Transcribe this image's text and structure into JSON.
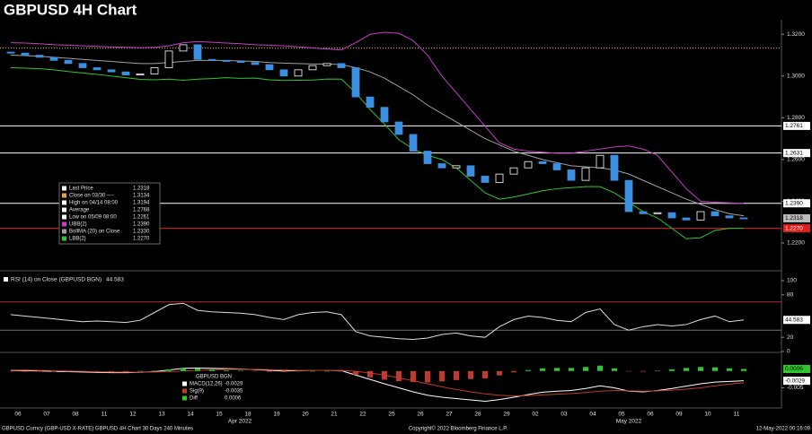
{
  "title": "GBPUSD 4H Chart",
  "x_axis": {
    "categories": [
      "06",
      "07",
      "08",
      "11",
      "12",
      "13",
      "14",
      "15",
      "18",
      "19",
      "20",
      "21",
      "22",
      "25",
      "26",
      "27",
      "28",
      "29",
      "02",
      "03",
      "04",
      "05",
      "06",
      "09",
      "10",
      "11"
    ],
    "months": [
      "Apr 2022",
      "May 2022"
    ]
  },
  "footer": {
    "left": "GBPUSD Curncy (GBP-USD X-RATE) GBPUSD 4H Chart 30 Days 240 Minutes",
    "center": "Copyright© 2022 Bloomberg Finance L.P.",
    "right": "12-May-2022 00:16:09"
  },
  "chart_data": [
    {
      "type": "candlestick",
      "ylim": [
        1.2075,
        1.327
      ],
      "yticks": [
        {
          "value": 1.32,
          "label": "1.3200"
        },
        {
          "value": 1.3,
          "label": "1.3000"
        },
        {
          "value": 1.28,
          "label": "1.2800"
        },
        {
          "value": 1.26,
          "label": "1.2600"
        },
        {
          "value": 1.24,
          "label": "1.2400"
        },
        {
          "value": 1.22,
          "label": "1.2200"
        }
      ],
      "up_color": "#ffffff",
      "down_color": "#3d8fe0",
      "open": [
        1.3115,
        1.311,
        1.31,
        1.309,
        1.3075,
        1.306,
        1.304,
        1.303,
        1.302,
        1.3005,
        1.301,
        1.304,
        1.312,
        1.315,
        1.308,
        1.3075,
        1.307,
        1.3065,
        1.3055,
        1.303,
        1.3,
        1.303,
        1.305,
        1.306,
        1.304,
        1.29,
        1.285,
        1.278,
        1.272,
        1.264,
        1.258,
        1.256,
        1.257,
        1.252,
        1.249,
        1.253,
        1.256,
        1.259,
        1.258,
        1.255,
        1.25,
        1.256,
        1.262,
        1.25,
        1.235,
        1.234,
        1.2345,
        1.232,
        1.231,
        1.235,
        1.233,
        1.232
      ],
      "close": [
        1.311,
        1.31,
        1.309,
        1.3075,
        1.306,
        1.304,
        1.303,
        1.302,
        1.3005,
        1.301,
        1.304,
        1.312,
        1.315,
        1.308,
        1.3075,
        1.307,
        1.3065,
        1.3055,
        1.303,
        1.3,
        1.303,
        1.305,
        1.306,
        1.304,
        1.29,
        1.285,
        1.278,
        1.272,
        1.264,
        1.258,
        1.256,
        1.257,
        1.252,
        1.249,
        1.253,
        1.256,
        1.259,
        1.258,
        1.255,
        1.25,
        1.256,
        1.262,
        1.25,
        1.235,
        1.234,
        1.2345,
        1.232,
        1.231,
        1.235,
        1.233,
        1.232,
        1.2318
      ],
      "series": [
        {
          "color": "#c83cc8",
          "values": [
            1.316,
            1.3158,
            1.3155,
            1.315,
            1.3148,
            1.3145,
            1.3142,
            1.314,
            1.3138,
            1.3136,
            1.3138,
            1.3145,
            1.316,
            1.3165,
            1.3162,
            1.3158,
            1.3155,
            1.315,
            1.3148,
            1.3145,
            1.314,
            1.3135,
            1.313,
            1.3125,
            1.316,
            1.32,
            1.321,
            1.3205,
            1.317,
            1.31,
            1.3,
            1.292,
            1.284,
            1.276,
            1.268,
            1.265,
            1.264,
            1.2635,
            1.263,
            1.263,
            1.264,
            1.265,
            1.266,
            1.2665,
            1.265,
            1.262,
            1.254,
            1.246,
            1.24,
            1.2395,
            1.2392,
            1.239
          ]
        },
        {
          "color": "#a0a0a0",
          "values": [
            1.31,
            1.3098,
            1.3095,
            1.309,
            1.3085,
            1.308,
            1.3075,
            1.307,
            1.3065,
            1.306,
            1.306,
            1.3065,
            1.307,
            1.3075,
            1.3075,
            1.3075,
            1.3072,
            1.307,
            1.3065,
            1.3062,
            1.306,
            1.3058,
            1.3058,
            1.3055,
            1.304,
            1.302,
            1.299,
            1.295,
            1.291,
            1.286,
            1.282,
            1.278,
            1.274,
            1.27,
            1.267,
            1.264,
            1.262,
            1.26,
            1.2585,
            1.257,
            1.2565,
            1.256,
            1.255,
            1.253,
            1.25,
            1.247,
            1.244,
            1.241,
            1.2385,
            1.236,
            1.234,
            1.233
          ]
        },
        {
          "color": "#2ec82e",
          "values": [
            1.304,
            1.3038,
            1.3035,
            1.303,
            1.3022,
            1.3015,
            1.3008,
            1.3,
            1.2992,
            1.2984,
            1.2982,
            1.2985,
            1.298,
            1.2985,
            1.2988,
            1.2992,
            1.2989,
            1.299,
            1.2982,
            1.2979,
            1.298,
            1.2981,
            1.2986,
            1.2985,
            1.292,
            1.284,
            1.277,
            1.2695,
            1.265,
            1.262,
            1.26,
            1.256,
            1.25,
            1.244,
            1.241,
            1.242,
            1.2435,
            1.245,
            1.246,
            1.2465,
            1.247,
            1.247,
            1.244,
            1.2395,
            1.235,
            1.232,
            1.227,
            1.222,
            1.2225,
            1.226,
            1.227,
            1.227
          ]
        }
      ],
      "levels": [
        {
          "level": 1.3134,
          "color": "#e8a040",
          "dashed": true
        },
        {
          "level": 1.2761,
          "color": "#ffffff"
        },
        {
          "level": 1.2631,
          "color": "#ffffff"
        },
        {
          "level": {
            "value": 1.239,
            "label": "1.2390"
          },
          "color": "#ffffff"
        },
        {
          "level": {
            "value": 1.227,
            "label": "1.2270"
          },
          "color": "#e02020"
        }
      ],
      "last_price": 1.2318,
      "legend": [
        {
          "name": "Last Price",
          "color": "#ffffff",
          "value": 1.2318
        },
        {
          "name": "Close on 03/30 ----",
          "color": "#e8a040",
          "value": 1.3134
        },
        {
          "name": "High on 04/14 08:00",
          "color": "#ffffff",
          "value": 1.3194
        },
        {
          "name": "Average",
          "color": "#ffffff",
          "value": 1.2768
        },
        {
          "name": "Low on 05/09 08:00",
          "color": "#ffffff",
          "value": 1.2261
        },
        {
          "name": "UBB(2)",
          "color": "#c83cc8",
          "value": {
            "value": 1.239,
            "label": "1.2390"
          }
        },
        {
          "name": "BollMA (20)  on Close",
          "color": "#a0a0a0",
          "value": {
            "value": 1.233,
            "label": "1.2330"
          }
        },
        {
          "name": "LBB(2)",
          "color": "#2ec82e",
          "value": {
            "value": 1.227,
            "label": "1.2270"
          }
        }
      ]
    },
    {
      "type": "line",
      "title": "RSI (14)  on Close (GBPUSD BGN)",
      "ylim": [
        0,
        110
      ],
      "yticks": [
        100,
        80,
        20,
        0
      ],
      "levels": [
        {
          "level": 70,
          "color": "#c02020"
        },
        {
          "level": 30,
          "color": "#707070"
        }
      ],
      "series": [
        {
          "color": "#dddddd",
          "values": [
            52,
            50,
            48,
            46,
            44,
            42,
            43,
            42,
            41,
            44,
            55,
            66,
            68,
            58,
            56,
            55,
            54,
            52,
            48,
            45,
            52,
            55,
            56,
            52,
            28,
            22,
            20,
            18,
            17,
            19,
            24,
            26,
            22,
            20,
            35,
            45,
            50,
            48,
            44,
            42,
            55,
            60,
            38,
            30,
            35,
            38,
            36,
            38,
            45,
            50,
            42,
            44.583
          ]
        }
      ]
    },
    {
      "type": "line",
      "title": "GBPUSD BGN",
      "ylim": [
        -0.015,
        0.005
      ],
      "yticks": [
        -0.005
      ],
      "series": [
        {
          "name": "MACD(12,26)",
          "color": "#ffffff",
          "values": [
            0.0002,
            0.0001,
            0,
            -0.0001,
            -0.0002,
            -0.0003,
            -0.0004,
            -0.0005,
            -0.0005,
            -0.0004,
            -0.0002,
            0.0003,
            0.0008,
            0.0009,
            0.0008,
            0.0007,
            0.0006,
            0.0004,
            0.0002,
            0,
            0.0001,
            0.0002,
            0.0002,
            0.0001,
            -0.0012,
            -0.0025,
            -0.0038,
            -0.005,
            -0.0062,
            -0.0072,
            -0.0078,
            -0.0082,
            -0.0086,
            -0.009,
            -0.0085,
            -0.0078,
            -0.007,
            -0.0063,
            -0.006,
            -0.0058,
            -0.0052,
            -0.0044,
            -0.005,
            -0.006,
            -0.0062,
            -0.0058,
            -0.0052,
            -0.0045,
            -0.0038,
            -0.0033,
            -0.0031,
            -0.0029
          ]
        },
        {
          "name": "Sig(9)",
          "color": "#c0392b",
          "values": [
            0.0003,
            0.0003,
            0.0002,
            0.0001,
            0,
            -0.0001,
            -0.0002,
            -0.0003,
            -0.0003,
            -0.0004,
            -0.0003,
            -0.0002,
            0,
            0.0002,
            0.0004,
            0.0005,
            0.0005,
            0.0005,
            0.0004,
            0.0003,
            0.0002,
            0.0002,
            0.0002,
            0.0002,
            -0.0001,
            -0.0006,
            -0.0012,
            -0.002,
            -0.0029,
            -0.0038,
            -0.0047,
            -0.0055,
            -0.0062,
            -0.0068,
            -0.0072,
            -0.0074,
            -0.0073,
            -0.0071,
            -0.0069,
            -0.0067,
            -0.0064,
            -0.006,
            -0.0058,
            -0.0059,
            -0.006,
            -0.0059,
            -0.0057,
            -0.0054,
            -0.005,
            -0.0044,
            -0.0039,
            -0.0035
          ]
        },
        {
          "name": "Diff",
          "type": "bar",
          "color": "#2ec82e",
          "values": [
            -0.0001,
            -0.0002,
            -0.0002,
            -0.0002,
            -0.0002,
            -0.0002,
            -0.0002,
            -0.0002,
            -0.0002,
            0,
            0.0001,
            0.0005,
            0.0008,
            0.0007,
            0.0004,
            0.0002,
            0.0001,
            -0.0001,
            -0.0002,
            -0.0003,
            -0.0001,
            0,
            0,
            -0.0001,
            -0.0011,
            -0.0019,
            -0.0026,
            -0.003,
            -0.0033,
            -0.0034,
            -0.0031,
            -0.0027,
            -0.0024,
            -0.0022,
            -0.0013,
            -0.0004,
            0.0003,
            0.0008,
            0.0009,
            0.0009,
            0.0012,
            0.0016,
            0.0008,
            -0.0001,
            -0.0002,
            0.0001,
            0.0005,
            0.0009,
            0.0012,
            0.0011,
            0.0008,
            0.0006
          ]
        }
      ]
    }
  ]
}
